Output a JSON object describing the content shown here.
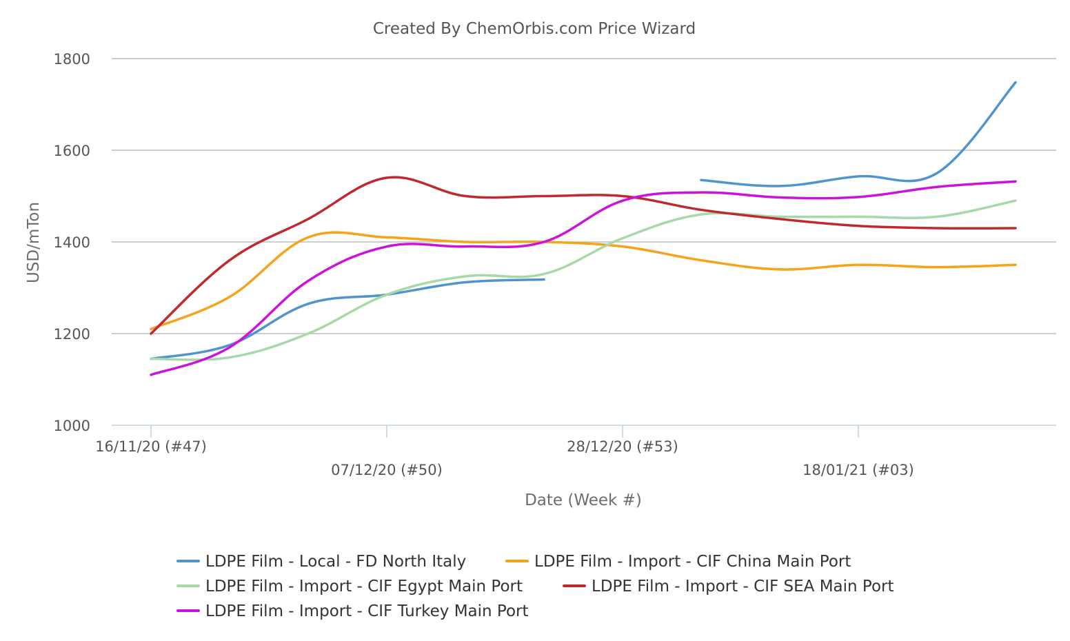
{
  "chart_data": {
    "type": "line",
    "title": "Created By ChemOrbis.com Price Wizard",
    "xlabel": "Date (Week #)",
    "ylabel": "USD/mTon",
    "ylim": [
      1000,
      1800
    ],
    "yticks": [
      1000,
      1200,
      1400,
      1600,
      1800
    ],
    "grid": true,
    "legend_position": "bottom",
    "x": [
      "16/11/20",
      "23/11/20",
      "30/11/20",
      "07/12/20",
      "14/12/20",
      "21/12/20",
      "28/12/20",
      "04/01/21",
      "11/01/21",
      "18/01/21",
      "25/01/21",
      "01/02/21"
    ],
    "x_tick_labels": [
      {
        "index": 0,
        "label": "16/11/20 (#47)"
      },
      {
        "index": 3,
        "label": "07/12/20 (#50)"
      },
      {
        "index": 6,
        "label": "28/12/20 (#53)"
      },
      {
        "index": 9,
        "label": "18/01/21 (#03)"
      }
    ],
    "series": [
      {
        "name": "LDPE Film - Local - FD North Italy",
        "color": "#4f94cd",
        "values": [
          1145,
          1175,
          1265,
          1285,
          1312,
          1318,
          null,
          1535,
          1522,
          1543,
          1550,
          1748
        ]
      },
      {
        "name": "LDPE Film - Import - CIF China Main Port",
        "color": "#f5a31a",
        "values": [
          1210,
          1280,
          1410,
          1410,
          1400,
          1400,
          1390,
          1360,
          1340,
          1350,
          1345,
          1350
        ]
      },
      {
        "name": "LDPE Film - Import - CIF Egypt Main Port",
        "color": "#a6d8a8",
        "values": [
          1145,
          1148,
          1200,
          1285,
          1325,
          1330,
          1408,
          1460,
          1455,
          1455,
          1455,
          1490
        ]
      },
      {
        "name": "LDPE Film - Import - CIF SEA Main Port",
        "color": "#c0282d",
        "values": [
          1200,
          1360,
          1450,
          1540,
          1500,
          1500,
          1500,
          1470,
          1450,
          1435,
          1430,
          1430
        ]
      },
      {
        "name": "LDPE Film - Import - CIF Turkey Main Port",
        "color": "#cc11dd",
        "values": [
          1110,
          1170,
          1315,
          1390,
          1390,
          1400,
          1490,
          1508,
          1497,
          1498,
          1520,
          1532
        ]
      }
    ]
  }
}
